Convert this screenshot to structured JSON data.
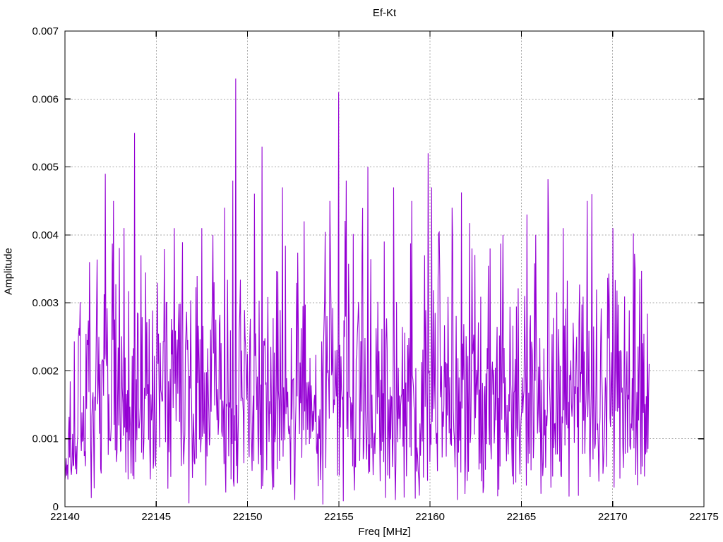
{
  "page": {
    "background": "#ffffff",
    "text_color": "#000000"
  },
  "chart_data": {
    "type": "line",
    "title": "Ef-Kt",
    "xlabel": "Freq [MHz]",
    "ylabel": "Amplitude",
    "xlim": [
      22140,
      22175
    ],
    "ylim": [
      0,
      0.007
    ],
    "grid": true,
    "legend": false,
    "x_ticks": {
      "values": [
        22140,
        22145,
        22150,
        22155,
        22160,
        22165,
        22170,
        22175
      ],
      "labels": [
        "22140",
        "22145",
        "22150",
        "22155",
        "22160",
        "22165",
        "22170",
        "22175"
      ]
    },
    "y_ticks": {
      "values": [
        0,
        0.001,
        0.002,
        0.003,
        0.004,
        0.005,
        0.006,
        0.007
      ],
      "labels": [
        "0",
        "0.001",
        "0.002",
        "0.003",
        "0.004",
        "0.005",
        "0.006",
        "0.007"
      ]
    },
    "colors": {
      "line": "#9400d3",
      "frame": "#000000",
      "grid": "#a8a8a8",
      "text": "#000000"
    },
    "series": {
      "name": "Ef-Kt",
      "description": "dense noisy amplitude spectrum, line plot, bulk between 0.0005 and 0.0035",
      "x_start": 22140.0,
      "x_end": 22172.0,
      "n_points": 1000,
      "distribution": "rayleigh",
      "sigma": 0.00135,
      "clamp_max": 0.0055,
      "seed": 20,
      "start_value": 0.0004,
      "end_value": 0.0021,
      "left_ramp_until": 22141.0,
      "left_ramp_floor": 0.35,
      "peaks": [
        [
          22141.35,
          0.0036
        ],
        [
          22142.2,
          0.0049
        ],
        [
          22142.65,
          0.0045
        ],
        [
          22143.8,
          0.0055
        ],
        [
          22144.15,
          0.0037
        ],
        [
          22146.0,
          0.0041
        ],
        [
          22147.5,
          0.0041
        ],
        [
          22148.1,
          0.004
        ],
        [
          22148.75,
          0.0044
        ],
        [
          22149.2,
          0.0048
        ],
        [
          22149.35,
          0.0063
        ],
        [
          22150.8,
          0.0053
        ],
        [
          22151.9,
          0.0047
        ],
        [
          22153.1,
          0.0042
        ],
        [
          22154.5,
          0.0045
        ],
        [
          22155.0,
          0.0061
        ],
        [
          22155.4,
          0.0048
        ],
        [
          22156.6,
          0.005
        ],
        [
          22158.0,
          0.0047
        ],
        [
          22159.0,
          0.0045
        ],
        [
          22159.9,
          0.0052
        ],
        [
          22160.1,
          0.0047
        ],
        [
          22161.2,
          0.0044
        ],
        [
          22162.3,
          0.0038
        ],
        [
          22163.3,
          0.0038
        ],
        [
          22164.0,
          0.004
        ],
        [
          22165.3,
          0.0043
        ],
        [
          22165.8,
          0.004
        ],
        [
          22166.5,
          0.0041
        ],
        [
          22167.3,
          0.0041
        ],
        [
          22168.6,
          0.0045
        ],
        [
          22168.85,
          0.0046
        ],
        [
          22170.0,
          0.0041
        ]
      ],
      "dips": [
        [
          22146.8,
          5e-05
        ],
        [
          22152.6,
          0.0001
        ],
        [
          22155.25,
          8e-05
        ],
        [
          22158.1,
          0.0001
        ],
        [
          22159.2,
          0.00012
        ],
        [
          22161.5,
          0.0001
        ],
        [
          22167.6,
          0.00015
        ]
      ]
    }
  }
}
